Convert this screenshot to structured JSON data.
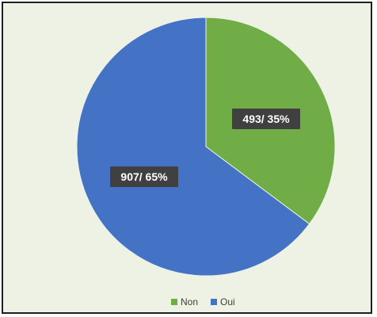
{
  "chart_data": {
    "type": "pie",
    "title": "",
    "categories": [
      "Non",
      "Oui"
    ],
    "values": [
      493,
      907
    ],
    "percentages": [
      35,
      65
    ],
    "data_labels": [
      "493/ 35%",
      "907/ 65%"
    ],
    "colors": [
      "#70ad47",
      "#4472c4"
    ],
    "legend": {
      "position": "bottom",
      "entries": [
        "Non",
        "Oui"
      ]
    }
  }
}
